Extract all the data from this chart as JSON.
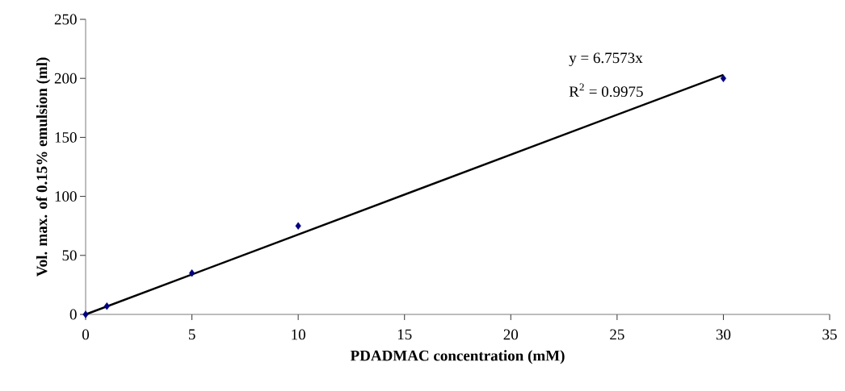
{
  "chart_data": {
    "type": "scatter",
    "xlabel": "PDADMAC concentration (mM)",
    "ylabel": "Vol. max. of 0.15% emulsion (ml)",
    "xlim": [
      0,
      35
    ],
    "xticks": [
      0,
      5,
      10,
      15,
      20,
      25,
      30,
      35
    ],
    "ylim": [
      0,
      250
    ],
    "yticks": [
      0,
      50,
      100,
      150,
      200,
      250
    ],
    "series": [
      {
        "color": "#000080",
        "marker": "diamond",
        "x": [
          0,
          1,
          5,
          10,
          30
        ],
        "values": [
          0,
          7,
          35,
          75,
          200
        ]
      },
      {
        "type": "line",
        "color": "#000000",
        "marker": "none",
        "line_style": "solid",
        "x": [
          0,
          30
        ],
        "values": [
          0,
          203
        ]
      }
    ],
    "annotations": [
      "y = 6.7573x",
      "R$^{2}$ = 0.9975"
    ]
  }
}
